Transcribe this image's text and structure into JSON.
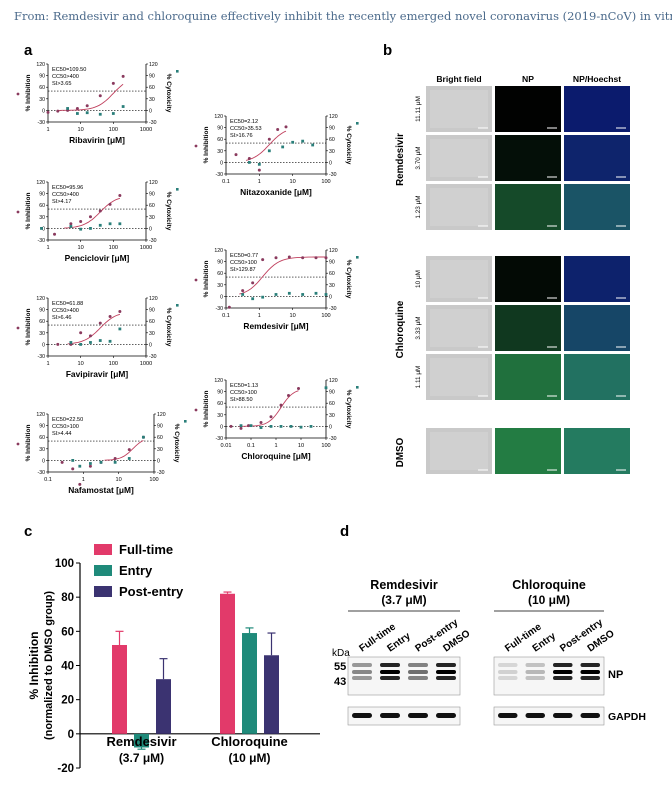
{
  "caption": "From: Remdesivir and chloroquine effectively inhibit the recently emerged novel coronavirus (2019-nCoV) in vitro",
  "panel_labels": {
    "a": "a",
    "b": "b",
    "c": "c",
    "d": "d"
  },
  "colors": {
    "inhibition": "#8a3a5e",
    "cytotox": "#2a7f7a",
    "curve": "#c0405e",
    "fulltime": "#e23a6a",
    "entry": "#1f8a7a",
    "postentry": "#3b3371"
  },
  "panel_a": {
    "y_left_label": "% Inhibition",
    "y_right_label": "% Cytoxicity",
    "plots": [
      {
        "id": "ribavirin",
        "xlabel": "Ribavirin [μM]",
        "xticks": [
          "1",
          "10",
          "100",
          "1000"
        ],
        "yticks_left": [
          "120",
          "90",
          "60",
          "30",
          "0",
          "-30"
        ],
        "yticks_right": [
          "120",
          "90",
          "60",
          "30",
          "0",
          "-30"
        ],
        "stats": [
          "EC50=109.50",
          "CC50>400",
          "SI>3.65"
        ],
        "inhibition": [
          [
            0,
            -5
          ],
          [
            0.3,
            -2
          ],
          [
            0.6,
            0
          ],
          [
            0.9,
            5
          ],
          [
            1.2,
            12
          ],
          [
            1.6,
            38
          ],
          [
            2.0,
            70
          ],
          [
            2.3,
            88
          ]
        ],
        "cytotox": [
          [
            0.6,
            5
          ],
          [
            0.9,
            -8
          ],
          [
            1.2,
            -6
          ],
          [
            1.6,
            -10
          ],
          [
            2.0,
            -8
          ],
          [
            2.3,
            10
          ]
        ]
      },
      {
        "id": "nitazoxanide",
        "xlabel": "Nitazoxanide [μM]",
        "xticks": [
          "0.1",
          "1",
          "10",
          "100"
        ],
        "yticks_left": [
          "120",
          "90",
          "60",
          "30",
          "0",
          "-30"
        ],
        "yticks_right": [
          "120",
          "90",
          "60",
          "30",
          "0",
          "-30"
        ],
        "stats": [
          "EC50=2.12",
          "CC50>35.53",
          "SI>16.76"
        ],
        "inhibition": [
          [
            -0.7,
            20
          ],
          [
            -0.3,
            10
          ],
          [
            0,
            -20
          ],
          [
            0.3,
            60
          ],
          [
            0.55,
            85
          ],
          [
            0.8,
            92
          ]
        ],
        "cytotox": [
          [
            -0.3,
            0
          ],
          [
            0,
            -5
          ],
          [
            0.3,
            30
          ],
          [
            0.7,
            40
          ],
          [
            1.0,
            52
          ],
          [
            1.3,
            55
          ],
          [
            1.6,
            45
          ]
        ]
      },
      {
        "id": "penciclovir",
        "xlabel": "Penciclovir [μM]",
        "xticks": [
          "1",
          "10",
          "100",
          "1000"
        ],
        "yticks_left": [
          "120",
          "90",
          "60",
          "30",
          "0",
          "-30"
        ],
        "yticks_right": [
          "120",
          "90",
          "60",
          "30",
          "0",
          "-30"
        ],
        "stats": [
          "EC50=95.96",
          "CC50>400",
          "SI>4.17"
        ],
        "inhibition": [
          [
            0.2,
            -15
          ],
          [
            0.7,
            12
          ],
          [
            1.0,
            18
          ],
          [
            1.3,
            30
          ],
          [
            1.6,
            45
          ],
          [
            1.9,
            62
          ],
          [
            2.2,
            85
          ]
        ],
        "cytotox": [
          [
            -0.2,
            0
          ],
          [
            0.7,
            5
          ],
          [
            1.0,
            -2
          ],
          [
            1.3,
            0
          ],
          [
            1.6,
            8
          ],
          [
            1.9,
            12
          ],
          [
            2.2,
            12
          ]
        ]
      },
      {
        "id": "remdesivir",
        "xlabel": "Remdesivir [μM]",
        "xticks": [
          "0.1",
          "1",
          "10",
          "100"
        ],
        "yticks_left": [
          "120",
          "90",
          "60",
          "30",
          "0",
          "-30"
        ],
        "yticks_right": [
          "120",
          "90",
          "60",
          "30",
          "0",
          "-30"
        ],
        "stats": [
          "EC50=0.77",
          "CC50>100",
          "SI>129.87"
        ],
        "inhibition": [
          [
            -0.9,
            -28
          ],
          [
            -0.5,
            15
          ],
          [
            -0.2,
            35
          ],
          [
            0.1,
            95
          ],
          [
            0.5,
            100
          ],
          [
            0.9,
            102
          ],
          [
            1.3,
            100
          ],
          [
            1.7,
            100
          ],
          [
            2.0,
            100
          ]
        ],
        "cytotox": [
          [
            -0.5,
            5
          ],
          [
            -0.2,
            -6
          ],
          [
            0.1,
            -2
          ],
          [
            0.5,
            5
          ],
          [
            0.9,
            8
          ],
          [
            1.3,
            5
          ],
          [
            1.7,
            8
          ],
          [
            2.0,
            5
          ]
        ]
      },
      {
        "id": "favipiravir",
        "xlabel": "Favipiravir [μM]",
        "xticks": [
          "1",
          "10",
          "100",
          "1000"
        ],
        "yticks_left": [
          "120",
          "90",
          "60",
          "30",
          "0",
          "-30"
        ],
        "yticks_right": [
          "120",
          "90",
          "60",
          "30",
          "0",
          "-30"
        ],
        "stats": [
          "EC50=61.88",
          "CC50>400",
          "SI>6.46"
        ],
        "inhibition": [
          [
            0.3,
            0
          ],
          [
            0.7,
            0
          ],
          [
            1.0,
            30
          ],
          [
            1.3,
            22
          ],
          [
            1.6,
            55
          ],
          [
            1.9,
            72
          ],
          [
            2.2,
            85
          ]
        ],
        "cytotox": [
          [
            0.7,
            5
          ],
          [
            1.0,
            0
          ],
          [
            1.3,
            5
          ],
          [
            1.6,
            10
          ],
          [
            1.9,
            8
          ],
          [
            2.2,
            40
          ]
        ]
      },
      {
        "id": "chloroquine",
        "xlabel": "Chloroquine [μM]",
        "xticks": [
          "0.01",
          "0.1",
          "1",
          "10",
          "100"
        ],
        "yticks_left": [
          "120",
          "90",
          "60",
          "30",
          "0",
          "-30"
        ],
        "yticks_right": [
          "120",
          "90",
          "60",
          "30",
          "0",
          "-30"
        ],
        "stats": [
          "EC50=1.13",
          "CC50>100",
          "SI>88.50"
        ],
        "inhibition": [
          [
            -1.8,
            0
          ],
          [
            -1.4,
            -5
          ],
          [
            -1.1,
            2
          ],
          [
            -0.6,
            10
          ],
          [
            -0.2,
            25
          ],
          [
            0.2,
            55
          ],
          [
            0.5,
            80
          ],
          [
            0.9,
            98
          ]
        ],
        "cytotox": [
          [
            -1.4,
            2
          ],
          [
            -1.0,
            2
          ],
          [
            -0.6,
            -3
          ],
          [
            -0.2,
            0
          ],
          [
            0.2,
            0
          ],
          [
            0.6,
            0
          ],
          [
            1.0,
            -2
          ],
          [
            1.4,
            0
          ],
          [
            2.0,
            100
          ]
        ]
      },
      {
        "id": "nafamostat",
        "xlabel": "Nafamostat [μM]",
        "xticks": [
          "0.1",
          "1",
          "10",
          "100"
        ],
        "yticks_left": [
          "120",
          "90",
          "60",
          "30",
          "0",
          "-30"
        ],
        "yticks_right": [
          "120",
          "90",
          "60",
          "30",
          "0",
          "-30"
        ],
        "stats": [
          "EC50=22.50",
          "CC50>100",
          "SI>4.44"
        ],
        "inhibition": [
          [
            -0.6,
            -5
          ],
          [
            -0.3,
            -22
          ],
          [
            -0.1,
            -62
          ],
          [
            0.2,
            -15
          ],
          [
            0.5,
            -5
          ],
          [
            0.9,
            5
          ],
          [
            1.3,
            28
          ],
          [
            1.7,
            60
          ]
        ],
        "cytotox": [
          [
            -0.3,
            0
          ],
          [
            -0.1,
            -15
          ],
          [
            0.2,
            -8
          ],
          [
            0.5,
            -5
          ],
          [
            0.9,
            -5
          ],
          [
            1.3,
            5
          ],
          [
            1.7,
            60
          ]
        ]
      }
    ]
  },
  "panel_b": {
    "col_headers": [
      "Bright field",
      "NP",
      "NP/Hoechst"
    ],
    "groups": [
      {
        "label": "Remdesivir",
        "rows": [
          "11.11 μM",
          "3.70 μM",
          "1.23 μM"
        ],
        "np": [
          0.02,
          0.12,
          0.6
        ]
      },
      {
        "label": "Chloroquine",
        "rows": [
          "10 μM",
          "3.33 μM",
          "1.11 μM"
        ],
        "np": [
          0.08,
          0.45,
          0.9
        ]
      },
      {
        "label": "DMSO",
        "rows": [
          ""
        ],
        "np": [
          1.0
        ]
      }
    ]
  },
  "chart_data": {
    "type": "bar",
    "ylabel": "% Inhibition\n(normalized to DMSO group)",
    "ylim": [
      -20,
      100
    ],
    "yticks": [
      "100",
      "80",
      "60",
      "40",
      "20",
      "0",
      "-20"
    ],
    "categories": [
      "Remdesivir (3.7 μM)",
      "Chloroquine (10 μM)"
    ],
    "category_lines": [
      [
        "Remdesivir",
        "(3.7 μM)"
      ],
      [
        "Chloroquine",
        "(10 μM)"
      ]
    ],
    "series": [
      {
        "name": "Full-time",
        "values": [
          52,
          82
        ],
        "errors": [
          8,
          1
        ]
      },
      {
        "name": "Entry",
        "values": [
          -8,
          59
        ],
        "errors": [
          1,
          3
        ]
      },
      {
        "name": "Post-entry",
        "values": [
          32,
          46
        ],
        "errors": [
          12,
          13
        ]
      }
    ],
    "legend_position": "top-left"
  },
  "panel_d": {
    "blots": [
      {
        "title": [
          "Remdesivir",
          "(3.7 μM)"
        ],
        "lanes": [
          "Full-time",
          "Entry",
          "Post-entry",
          "DMSO"
        ],
        "np": [
          0.45,
          1.0,
          0.55,
          1.0
        ]
      },
      {
        "title": [
          "Chloroquine",
          "(10 μM)"
        ],
        "lanes": [
          "Full-time",
          "Entry",
          "Post-entry",
          "DMSO"
        ],
        "np": [
          0.15,
          0.25,
          1.0,
          1.0
        ]
      }
    ],
    "kda_label": "kDa",
    "markers": [
      "55",
      "43"
    ],
    "np_label": "NP",
    "gapdh_label": "GAPDH"
  }
}
